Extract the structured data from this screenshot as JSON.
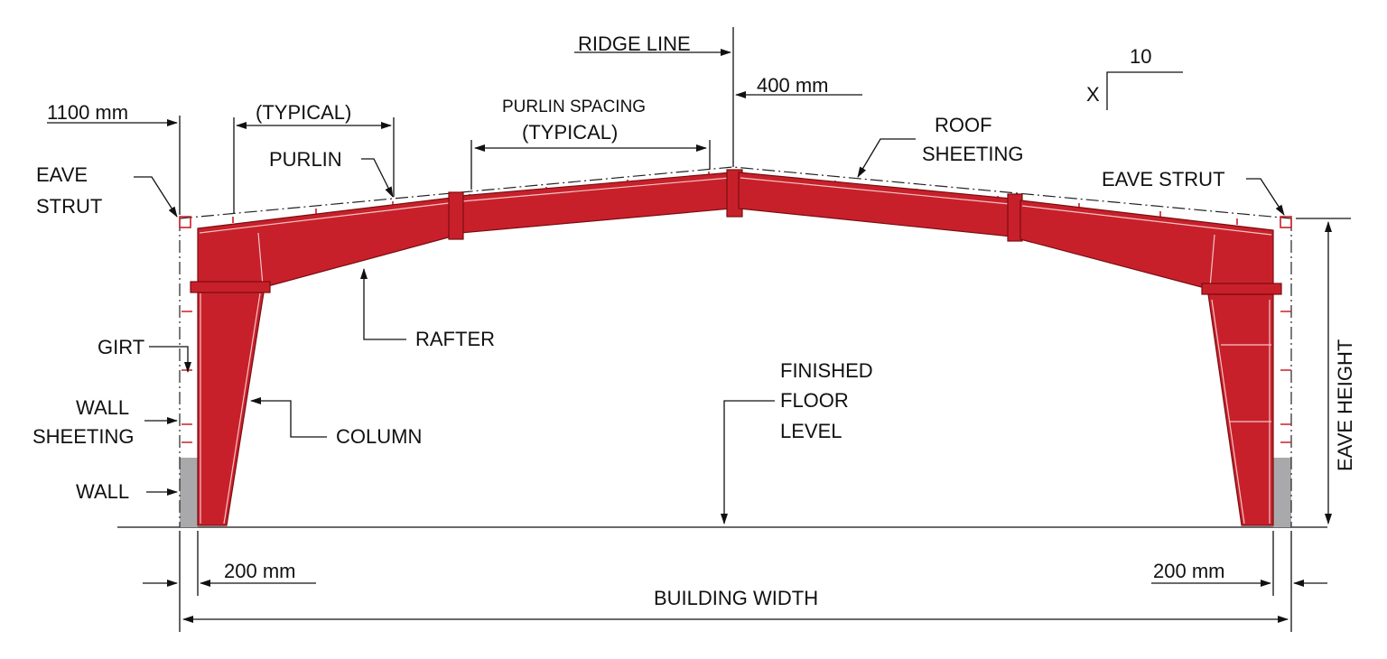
{
  "colors": {
    "steel": "#c8202a",
    "steel_outline": "#7a0d12",
    "wall": "#a9a9ab",
    "ink": "#111111"
  },
  "labels": {
    "ridge_line": "RIDGE LINE",
    "ridge_offset": "400 mm",
    "slope_rise": "10",
    "slope_run": "X",
    "eave_offset": "1100 mm",
    "typical": "(TYPICAL)",
    "purlin_spacing": "PURLIN SPACING",
    "purlin_spacing_typical": "(TYPICAL)",
    "purlin": "PURLIN",
    "roof_sheeting_1": "ROOF",
    "roof_sheeting_2": "SHEETING",
    "eave_strut_left_1": "EAVE",
    "eave_strut_left_2": "STRUT",
    "eave_strut_right": "EAVE STRUT",
    "rafter": "RAFTER",
    "girt": "GIRT",
    "wall_sheeting_1": "WALL",
    "wall_sheeting_2": "SHEETING",
    "wall": "WALL",
    "column": "COLUMN",
    "ffl_1": "FINISHED",
    "ffl_2": "FLOOR",
    "ffl_3": "LEVEL",
    "eave_height": "EAVE HEIGHT",
    "left_dim": "200 mm",
    "right_dim": "200 mm",
    "building_width": "BUILDING WIDTH"
  }
}
